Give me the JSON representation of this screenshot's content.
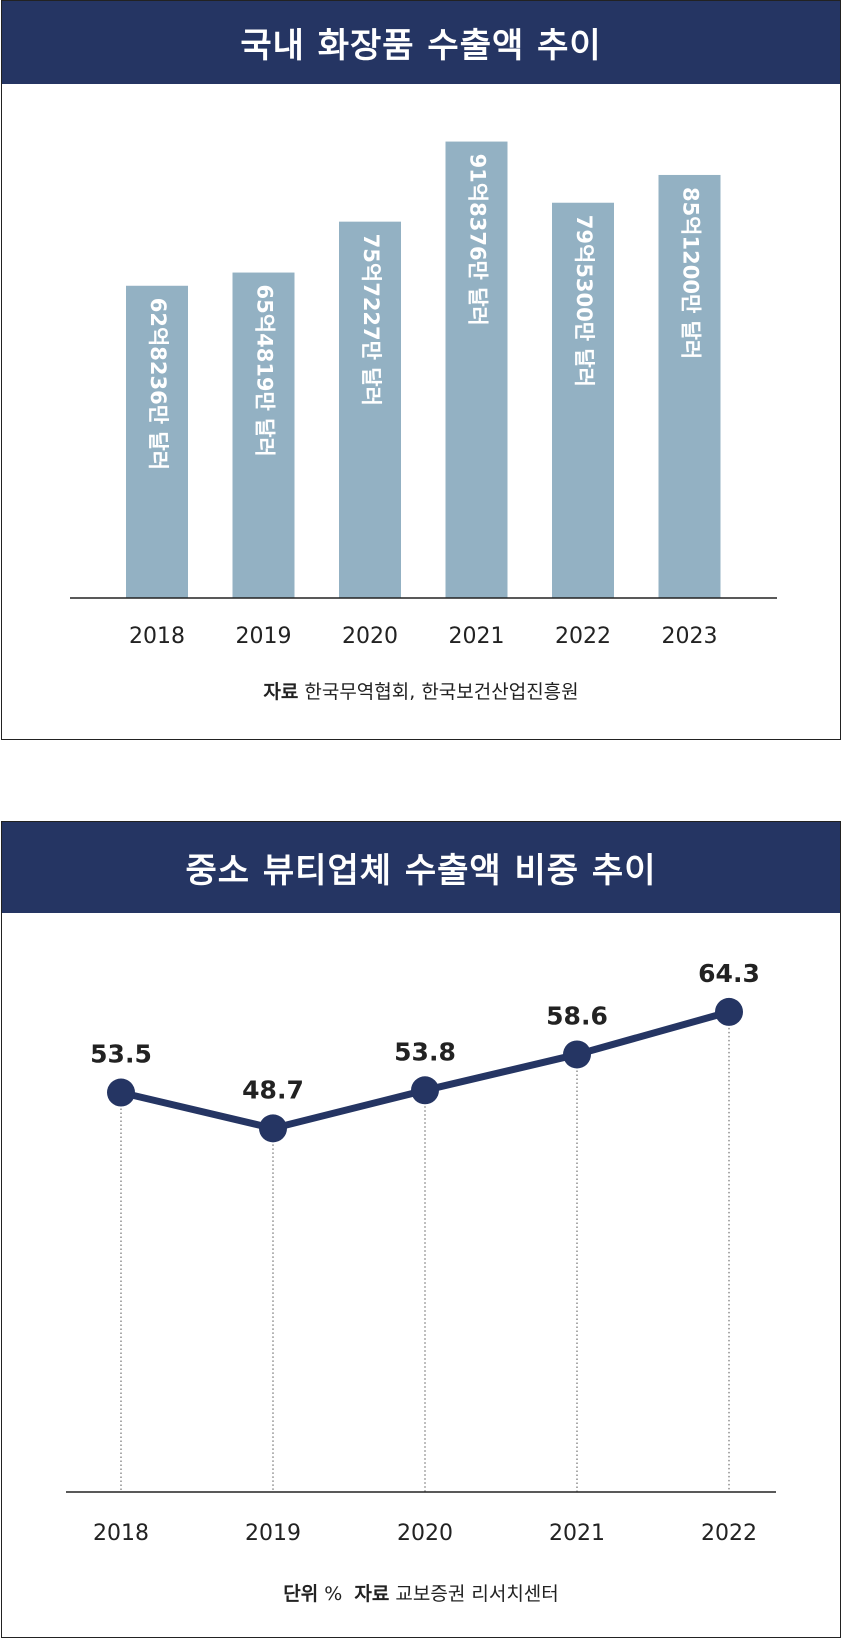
{
  "chart_data": [
    {
      "type": "bar",
      "title": "국내 화장품 수출액 추이",
      "categories": [
        "2018",
        "2019",
        "2020",
        "2021",
        "2022",
        "2023"
      ],
      "values": [
        62.8236,
        65.4819,
        75.7227,
        91.8376,
        79.53,
        85.12
      ],
      "value_labels": [
        "62억8236만 달러",
        "65억4819만 달러",
        "75억7227만 달러",
        "91억8376만 달러",
        "79억5300만 달러",
        "85억1200만 달러"
      ],
      "ylim": [
        0,
        100
      ],
      "bar_color": "#93b1c3",
      "source_label": "자료",
      "source_text": "한국무역협회, 한국보건산업진흥원"
    },
    {
      "type": "line",
      "title": "중소 뷰티업체 수출액 비중 추이",
      "categories": [
        "2018",
        "2019",
        "2020",
        "2021",
        "2022"
      ],
      "values": [
        53.5,
        48.7,
        53.8,
        58.6,
        64.3
      ],
      "value_labels": [
        "53.5",
        "48.7",
        "53.8",
        "58.6",
        "64.3"
      ],
      "ylim": [
        0,
        75
      ],
      "line_color": "#253563",
      "unit_label": "단위",
      "unit_text": "%",
      "source_label": "자료",
      "source_text": "교보증권 리서치센터"
    }
  ]
}
